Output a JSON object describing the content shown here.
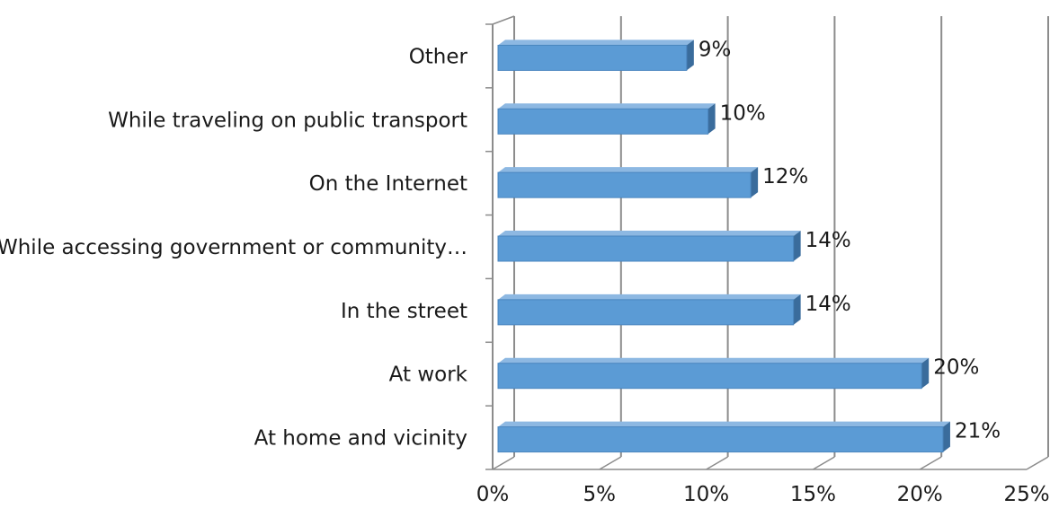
{
  "chart_data": {
    "type": "bar",
    "orientation": "horizontal",
    "style": "3d",
    "title": "",
    "xlabel": "",
    "ylabel": "",
    "categories": [
      "Other",
      "While traveling on public transport",
      "On the Internet",
      "While accessing government or community…",
      "In the street",
      "At work",
      "At home and vicinity"
    ],
    "values": [
      9,
      10,
      12,
      14,
      14,
      20,
      21
    ],
    "data_labels": [
      "9%",
      "10%",
      "12%",
      "14%",
      "14%",
      "20%",
      "21%"
    ],
    "xlim": [
      0,
      25
    ],
    "x_ticks": [
      0,
      5,
      10,
      15,
      20,
      25
    ],
    "x_tick_labels": [
      "0%",
      "5%",
      "10%",
      "15%",
      "20%",
      "25%"
    ],
    "grid": "vertical",
    "legend": "none",
    "colors": {
      "bar_front": "#5b9bd5",
      "bar_top": "#8db8e2",
      "bar_side": "#3a6c9c",
      "grid": "#8c8c8c",
      "text": "#1a1a1a"
    }
  }
}
